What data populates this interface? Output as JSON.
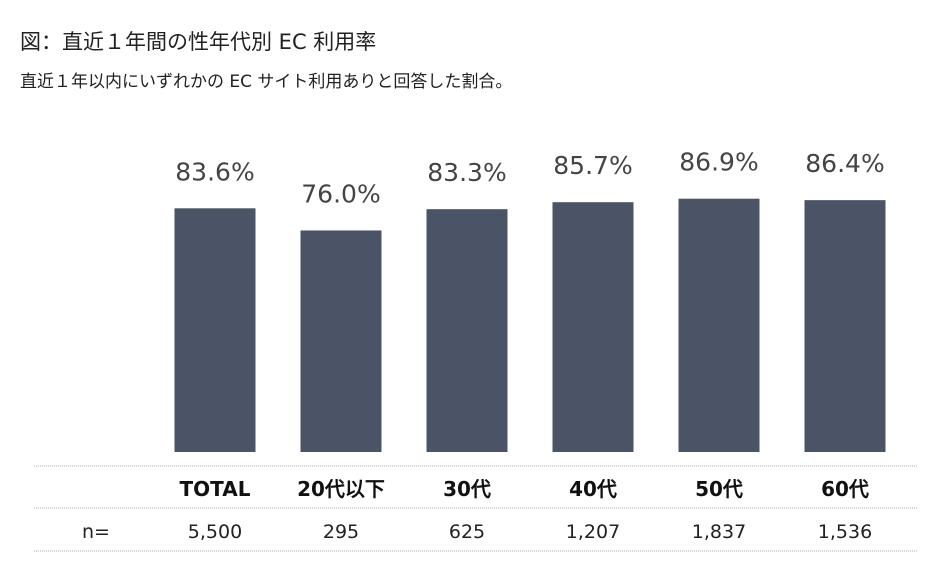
{
  "header": {
    "title": "図：直近１年間の性年代別 EC 利用率",
    "subtitle": "直近１年以内にいずれかの EC サイト利用ありと回答した割合。"
  },
  "chart_data": {
    "type": "bar",
    "categories": [
      "TOTAL",
      "20代以下",
      "30代",
      "40代",
      "50代",
      "60代"
    ],
    "values": [
      83.6,
      76.0,
      83.3,
      85.7,
      86.9,
      86.4
    ],
    "value_labels": [
      "83.6%",
      "76.0%",
      "83.3%",
      "85.7%",
      "86.9%",
      "86.4%"
    ],
    "n_label": "n=",
    "n_values": [
      "5,500",
      "295",
      "625",
      "1,207",
      "1,837",
      "1,536"
    ],
    "bar_color": "#4a5466",
    "title": "図：直近１年間の性年代別 EC 利用率",
    "xlabel": "",
    "ylabel": ""
  }
}
